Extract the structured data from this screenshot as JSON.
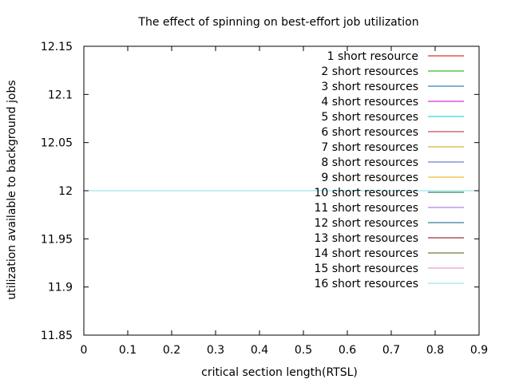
{
  "chart_data": {
    "type": "line",
    "title": "The effect of spinning on best-effort job utilization",
    "xlabel": "critical section length(RTSL)",
    "ylabel": "utilization available to background jobs",
    "xlim": [
      0,
      0.9
    ],
    "ylim": [
      11.85,
      12.15
    ],
    "x_ticks": [
      "0",
      "0.1",
      "0.2",
      "0.3",
      "0.4",
      "0.5",
      "0.6",
      "0.7",
      "0.8",
      "0.9"
    ],
    "y_ticks": [
      "11.85",
      "11.9",
      "11.95",
      "12",
      "12.05",
      "12.1",
      "12.15"
    ],
    "grid": false,
    "legend_position": "top-right",
    "x": [
      0,
      0.9
    ],
    "series": [
      {
        "name": "1 short resource",
        "color": "#cc0000",
        "values": [
          12,
          12
        ]
      },
      {
        "name": "2 short resources",
        "color": "#00aa00",
        "values": [
          12,
          12
        ]
      },
      {
        "name": "3 short resources",
        "color": "#0060ad",
        "values": [
          12,
          12
        ]
      },
      {
        "name": "4 short resources",
        "color": "#cc00cc",
        "values": [
          12,
          12
        ]
      },
      {
        "name": "5 short resources",
        "color": "#00cccc",
        "values": [
          12,
          12
        ]
      },
      {
        "name": "6 short resources",
        "color": "#b22222",
        "values": [
          12,
          12
        ]
      },
      {
        "name": "7 short resources",
        "color": "#c8a000",
        "values": [
          12,
          12
        ]
      },
      {
        "name": "8 short resources",
        "color": "#4060c0",
        "values": [
          12,
          12
        ]
      },
      {
        "name": "9 short resources",
        "color": "#f0a800",
        "values": [
          12,
          12
        ]
      },
      {
        "name": "10 short resources",
        "color": "#006040",
        "values": [
          12,
          12
        ]
      },
      {
        "name": "11 short resources",
        "color": "#a060e0",
        "values": [
          12,
          12
        ]
      },
      {
        "name": "12 short resources",
        "color": "#006080",
        "values": [
          12,
          12
        ]
      },
      {
        "name": "13 short resources",
        "color": "#800000",
        "values": [
          12,
          12
        ]
      },
      {
        "name": "14 short resources",
        "color": "#406000",
        "values": [
          12,
          12
        ]
      },
      {
        "name": "15 short resources",
        "color": "#e080e0",
        "values": [
          12,
          12
        ]
      },
      {
        "name": "16 short resources",
        "color": "#80e0e0",
        "values": [
          12,
          12
        ]
      }
    ]
  }
}
